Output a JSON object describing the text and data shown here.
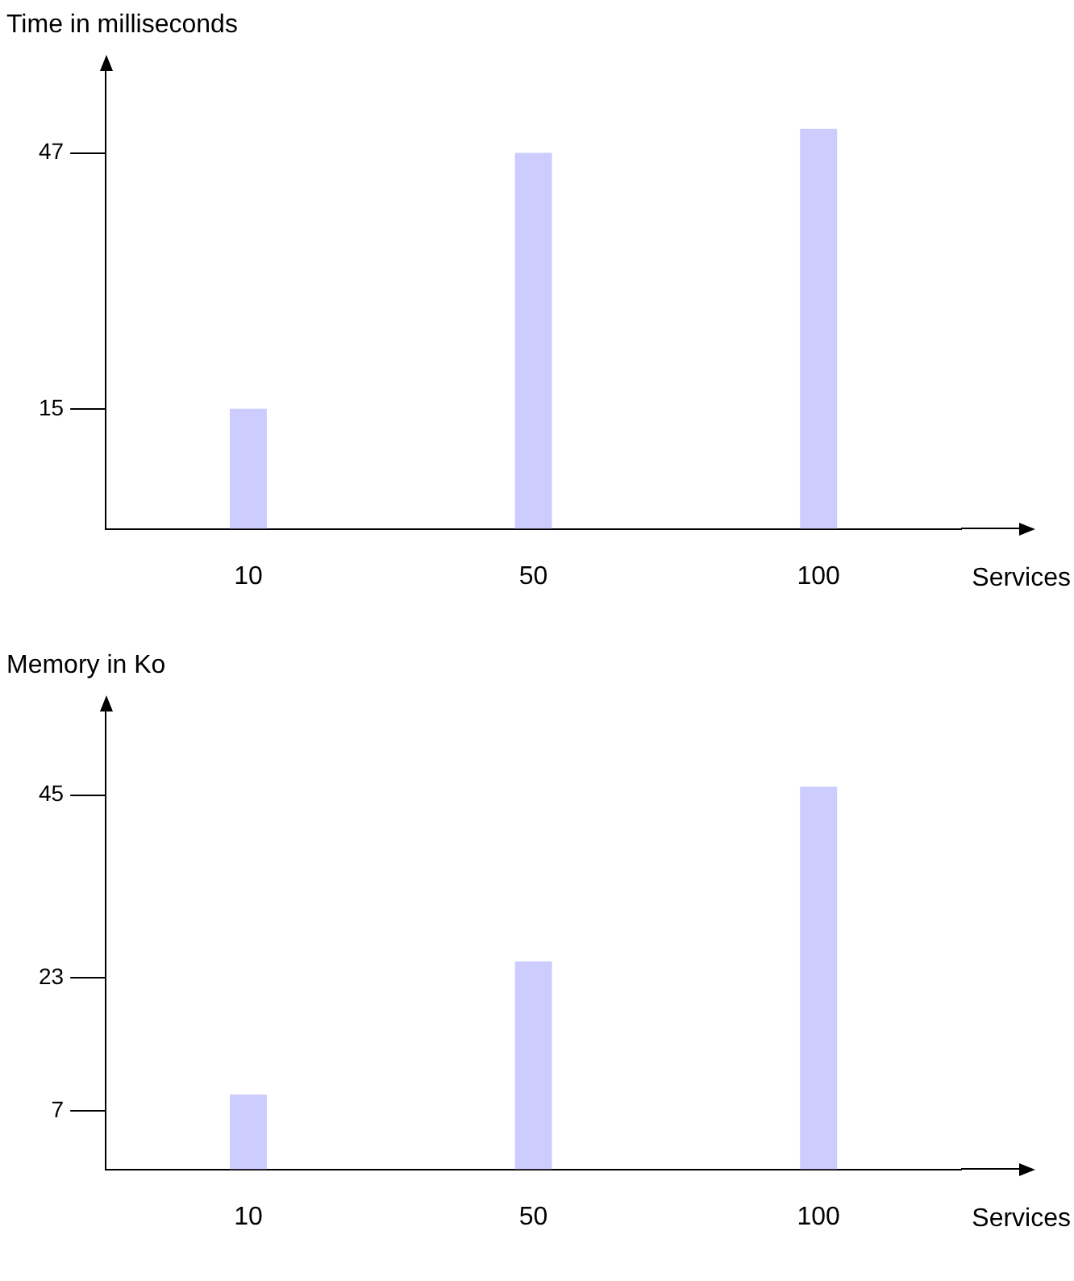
{
  "chart_data": [
    {
      "type": "bar",
      "ylabel": "Time in milliseconds",
      "xlabel": "Services",
      "categories": [
        "10",
        "50",
        "100"
      ],
      "values": [
        15,
        47,
        50
      ],
      "color": "#ccccff",
      "ylim": [
        0,
        52
      ],
      "yticks": [
        15,
        47
      ],
      "grid": false,
      "legend": false
    },
    {
      "type": "bar",
      "ylabel": "Memory in Ko",
      "xlabel": "Services",
      "categories": [
        "10",
        "50",
        "100"
      ],
      "values": [
        9,
        25,
        46
      ],
      "color": "#ccccff",
      "ylim": [
        0,
        50
      ],
      "yticks": [
        7,
        23,
        45
      ],
      "grid": false,
      "legend": false
    }
  ]
}
